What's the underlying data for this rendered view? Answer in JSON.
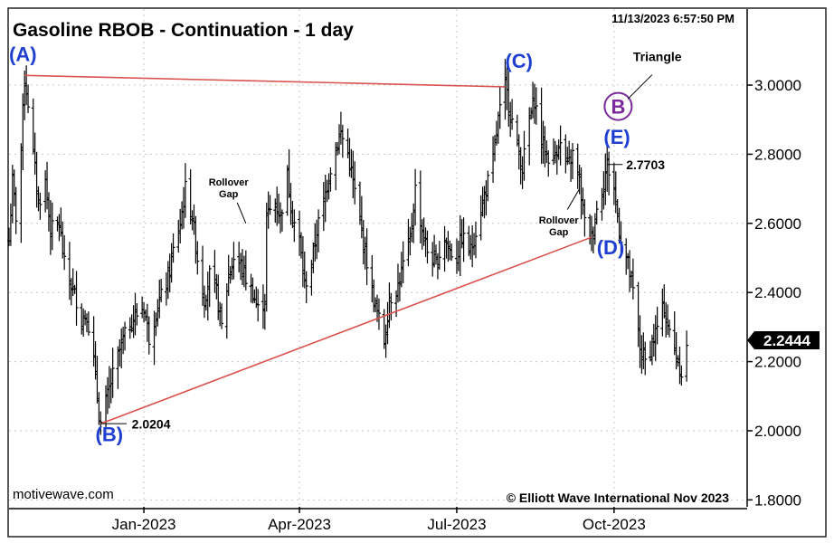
{
  "chart_data": {
    "type": "ohlc-bar",
    "title": "Gasoline RBOB - Continuation - 1 day",
    "timestamp": "11/13/2023 6:57:50 PM",
    "source": "motivewave.com",
    "copyright": "© Elliott Wave International Nov 2023",
    "ylim": [
      1.78,
      3.22
    ],
    "y_ticks": [
      "1.8000",
      "2.0000",
      "2.2000",
      "2.4000",
      "2.6000",
      "2.8000",
      "3.0000"
    ],
    "y_tick_values": [
      1.8,
      2.0,
      2.2,
      2.4,
      2.6,
      2.8,
      3.0
    ],
    "x_ticks": [
      "Jan-2023",
      "Apr-2023",
      "Jul-2023",
      "Oct-2023"
    ],
    "x_tick_values": [
      "2023-01-03",
      "2023-04-03",
      "2023-07-03",
      "2023-10-02"
    ],
    "x_range": [
      "2022-10-17",
      "2023-12-18"
    ],
    "last_price": "2.2444",
    "colors": {
      "bars": "#000000",
      "trendline": "#d9534f",
      "wave_label": "#1f3fd1",
      "circle_label": "#7a2a9a",
      "grid": "#c8c8c8",
      "price_tag": "#000000"
    },
    "series": [
      {
        "path": [
          [
            "2022-10-17",
            2.55
          ],
          [
            "2022-10-19",
            2.72
          ],
          [
            "2022-10-21",
            2.62
          ],
          [
            "2022-10-24",
            2.82
          ],
          [
            "2022-10-26",
            3.02
          ],
          [
            "2022-10-28",
            2.95
          ],
          [
            "2022-10-31",
            2.8
          ],
          [
            "2022-11-03",
            2.66
          ],
          [
            "2022-11-07",
            2.72
          ],
          [
            "2022-11-10",
            2.58
          ],
          [
            "2022-11-15",
            2.6
          ],
          [
            "2022-11-18",
            2.48
          ],
          [
            "2022-11-22",
            2.42
          ],
          [
            "2022-11-25",
            2.38
          ],
          [
            "2022-11-28",
            2.32
          ],
          [
            "2022-12-01",
            2.34
          ],
          [
            "2022-12-05",
            2.2
          ],
          [
            "2022-12-08",
            2.05
          ],
          [
            "2022-12-09",
            2.02
          ],
          [
            "2022-12-13",
            2.1
          ],
          [
            "2022-12-16",
            2.16
          ],
          [
            "2022-12-21",
            2.25
          ],
          [
            "2022-12-27",
            2.32
          ],
          [
            "2023-01-03",
            2.36
          ],
          [
            "2023-01-06",
            2.27
          ],
          [
            "2023-01-11",
            2.36
          ],
          [
            "2023-01-17",
            2.44
          ],
          [
            "2023-01-20",
            2.52
          ],
          [
            "2023-01-24",
            2.6
          ],
          [
            "2023-01-27",
            2.7
          ],
          [
            "2023-01-31",
            2.62
          ],
          [
            "2023-02-03",
            2.5
          ],
          [
            "2023-02-07",
            2.38
          ],
          [
            "2023-02-10",
            2.45
          ],
          [
            "2023-02-14",
            2.4
          ],
          [
            "2023-02-17",
            2.3
          ],
          [
            "2023-02-21",
            2.45
          ],
          [
            "2023-02-24",
            2.5
          ],
          [
            "2023-02-28",
            2.48
          ],
          [
            "2023-03-03",
            2.44
          ],
          [
            "2023-03-07",
            2.4
          ],
          [
            "2023-03-10",
            2.35
          ],
          [
            "2023-03-14",
            2.38
          ],
          [
            "2023-03-15",
            2.62
          ],
          [
            "2023-03-20",
            2.66
          ],
          [
            "2023-03-23",
            2.62
          ],
          [
            "2023-03-27",
            2.74
          ],
          [
            "2023-03-30",
            2.62
          ],
          [
            "2023-04-03",
            2.55
          ],
          [
            "2023-04-06",
            2.42
          ],
          [
            "2023-04-10",
            2.48
          ],
          [
            "2023-04-13",
            2.58
          ],
          [
            "2023-04-17",
            2.66
          ],
          [
            "2023-04-20",
            2.74
          ],
          [
            "2023-04-24",
            2.82
          ],
          [
            "2023-04-27",
            2.86
          ],
          [
            "2023-05-01",
            2.8
          ],
          [
            "2023-05-04",
            2.72
          ],
          [
            "2023-05-08",
            2.6
          ],
          [
            "2023-05-11",
            2.52
          ],
          [
            "2023-05-15",
            2.4
          ],
          [
            "2023-05-18",
            2.34
          ],
          [
            "2023-05-22",
            2.26
          ],
          [
            "2023-05-25",
            2.38
          ],
          [
            "2023-05-30",
            2.42
          ],
          [
            "2023-06-02",
            2.48
          ],
          [
            "2023-06-06",
            2.55
          ],
          [
            "2023-06-09",
            2.7
          ],
          [
            "2023-06-13",
            2.58
          ],
          [
            "2023-06-16",
            2.52
          ],
          [
            "2023-06-21",
            2.48
          ],
          [
            "2023-06-26",
            2.56
          ],
          [
            "2023-06-29",
            2.52
          ],
          [
            "2023-07-03",
            2.5
          ],
          [
            "2023-07-06",
            2.56
          ],
          [
            "2023-07-11",
            2.52
          ],
          [
            "2023-07-14",
            2.58
          ],
          [
            "2023-07-19",
            2.68
          ],
          [
            "2023-07-24",
            2.78
          ],
          [
            "2023-07-27",
            2.9
          ],
          [
            "2023-07-31",
            3.0
          ],
          [
            "2023-08-03",
            2.92
          ],
          [
            "2023-08-07",
            2.82
          ],
          [
            "2023-08-10",
            2.76
          ],
          [
            "2023-08-14",
            2.9
          ],
          [
            "2023-08-17",
            2.96
          ],
          [
            "2023-08-21",
            2.84
          ],
          [
            "2023-08-24",
            2.8
          ],
          [
            "2023-08-28",
            2.78
          ],
          [
            "2023-08-31",
            2.84
          ],
          [
            "2023-09-05",
            2.76
          ],
          [
            "2023-09-08",
            2.8
          ],
          [
            "2023-09-12",
            2.72
          ],
          [
            "2023-09-15",
            2.6
          ],
          [
            "2023-09-19",
            2.56
          ],
          [
            "2023-09-22",
            2.64
          ],
          [
            "2023-09-26",
            2.72
          ],
          [
            "2023-09-28",
            2.77
          ],
          [
            "2023-10-02",
            2.7
          ],
          [
            "2023-10-05",
            2.58
          ],
          [
            "2023-10-10",
            2.48
          ],
          [
            "2023-10-13",
            2.4
          ],
          [
            "2023-10-17",
            2.24
          ],
          [
            "2023-10-20",
            2.2
          ],
          [
            "2023-10-24",
            2.25
          ],
          [
            "2023-10-27",
            2.3
          ],
          [
            "2023-10-31",
            2.36
          ],
          [
            "2023-11-03",
            2.28
          ],
          [
            "2023-11-07",
            2.22
          ],
          [
            "2023-11-10",
            2.17
          ],
          [
            "2023-11-13",
            2.24
          ]
        ]
      }
    ],
    "trendlines": [
      {
        "from": [
          "2022-10-26",
          3.028
        ],
        "to": [
          "2023-07-31",
          2.995
        ]
      },
      {
        "from": [
          "2022-12-09",
          2.0204
        ],
        "to": [
          "2023-09-19",
          2.56
        ]
      }
    ],
    "annotations": {
      "wave_labels": [
        {
          "text": "(A)",
          "x": "2022-10-17",
          "y": 3.07
        },
        {
          "text": "(B)",
          "x": "2022-12-06",
          "y": 1.97
        },
        {
          "text": "(C)",
          "x": "2023-07-31",
          "y": 3.05
        },
        {
          "text": "(D)",
          "x": "2023-09-22",
          "y": 2.51
        },
        {
          "text": "(E)",
          "x": "2023-09-26",
          "y": 2.83
        }
      ],
      "circle_label": {
        "text": "B",
        "x": "2023-09-26",
        "y": 2.92
      },
      "price_labels": [
        {
          "text": "2.0204",
          "x": "2022-12-27",
          "y": 2.02
        },
        {
          "text": "2.7703",
          "x": "2023-10-09",
          "y": 2.77
        }
      ],
      "notes": [
        {
          "text": "Triangle",
          "x": "2023-10-13",
          "y": 3.07
        },
        {
          "lines": [
            "Rollover",
            "Gap"
          ],
          "x": "2023-02-21",
          "y": 2.71
        },
        {
          "lines": [
            "Rollover",
            "Gap"
          ],
          "x": "2023-08-31",
          "y": 2.6
        }
      ]
    }
  }
}
